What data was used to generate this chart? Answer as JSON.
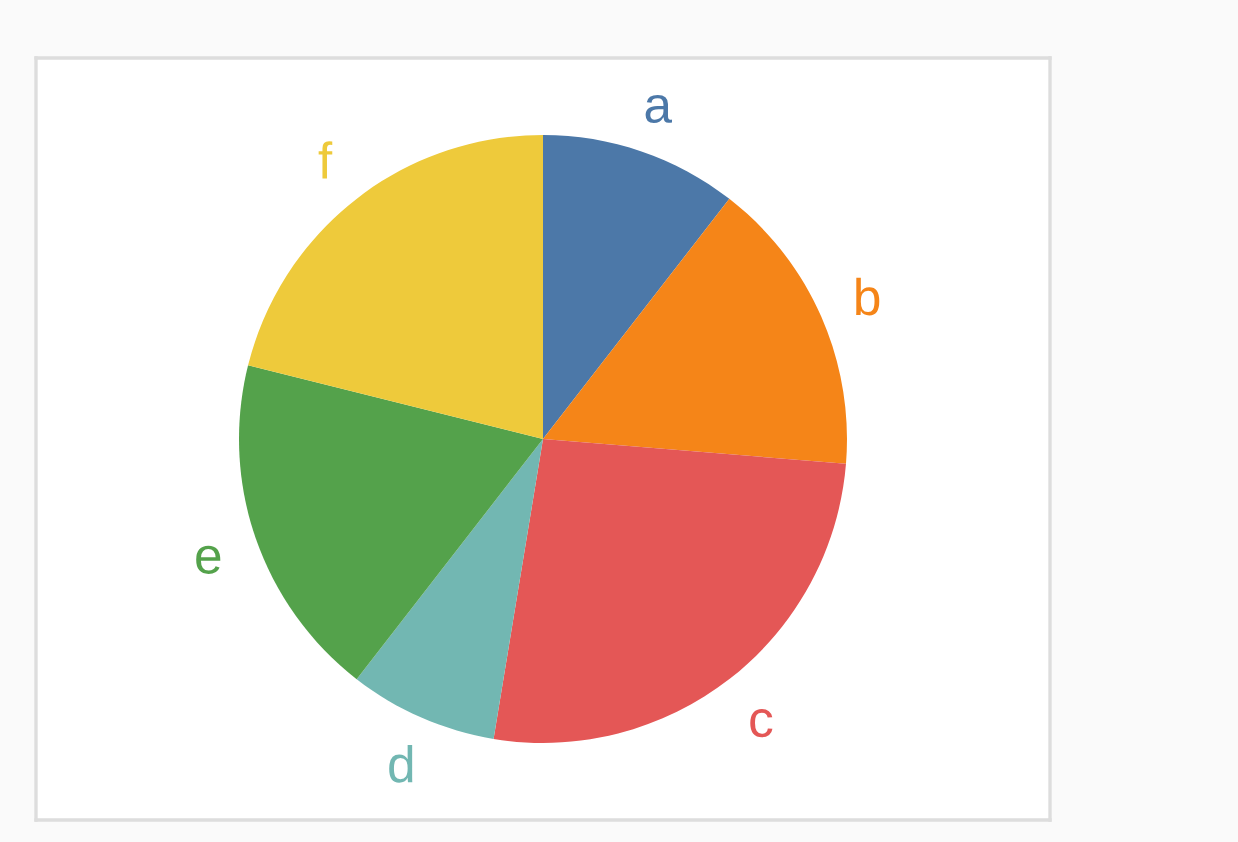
{
  "chart_data": {
    "type": "pie",
    "categories": [
      "a",
      "b",
      "c",
      "d",
      "e",
      "f"
    ],
    "values": [
      10.5,
      15.8,
      26.3,
      7.9,
      18.4,
      21.1
    ],
    "colors": [
      "#4c78a8",
      "#f58518",
      "#e45756",
      "#72b7b2",
      "#54a24b",
      "#eeca3b"
    ]
  }
}
